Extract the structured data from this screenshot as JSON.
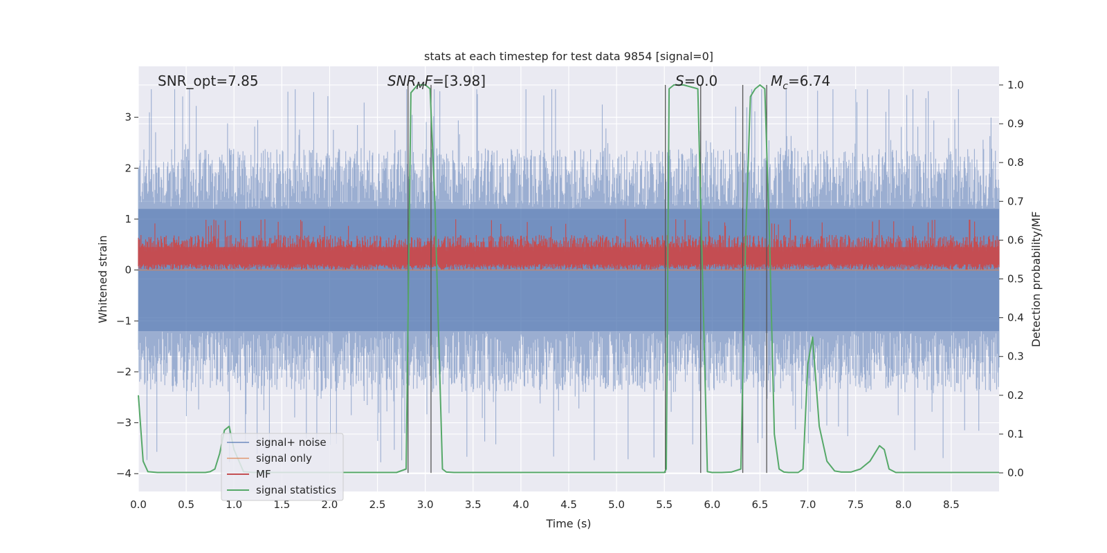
{
  "chart_data": {
    "type": "line",
    "title": "stats at each timestep for test data 9854 [signal=0]",
    "xlabel": "Time (s)",
    "ylabel_left": "Whitened strain",
    "ylabel_right": "Detection probability/MF",
    "xlim": [
      0.0,
      9.0
    ],
    "ylim_left": [
      -4.35,
      4.0
    ],
    "ylim_right": [
      -0.048,
      1.048
    ],
    "x_ticks": [
      "0.0",
      "0.5",
      "1.0",
      "1.5",
      "2.0",
      "2.5",
      "3.0",
      "3.5",
      "4.0",
      "4.5",
      "5.0",
      "5.5",
      "6.0",
      "6.5",
      "7.0",
      "7.5",
      "8.0",
      "8.5"
    ],
    "y_left_ticks": [
      "3",
      "2",
      "1",
      "0",
      "−1",
      "−2",
      "−3",
      "−4"
    ],
    "y_right_ticks": [
      "1.0",
      "0.9",
      "0.8",
      "0.7",
      "0.6",
      "0.5",
      "0.4",
      "0.3",
      "0.2",
      "0.1",
      "0.0"
    ],
    "grid": true,
    "annotations": {
      "snr_opt": "SNR_opt=7.85",
      "snr_mf": "=[3.98]",
      "s": "=0.0",
      "mc": "=6.74"
    },
    "legend": {
      "placement": "lower-left",
      "entries": [
        "signal+ noise",
        "signal only",
        "MF",
        "signal statistics"
      ]
    },
    "series": [
      {
        "name": "signal+ noise",
        "axis": "left",
        "color": "#4c72b0",
        "envelope": {
          "upper_typical": 2.0,
          "lower_typical": -2.0,
          "max": 3.55,
          "min": -3.8
        }
      },
      {
        "name": "signal only",
        "axis": "left",
        "color": "#dd8452",
        "constant": 0.0
      },
      {
        "name": "MF",
        "axis": "left",
        "color": "#c44e52",
        "envelope": {
          "low": 0.0,
          "high_typical": 0.6,
          "max": 1.0
        }
      },
      {
        "name": "signal statistics",
        "axis": "right",
        "color": "#55a868",
        "x": [
          0.0,
          0.05,
          0.1,
          0.2,
          0.3,
          0.4,
          0.5,
          0.6,
          0.7,
          0.75,
          0.8,
          0.85,
          0.9,
          0.95,
          1.0,
          1.1,
          1.2,
          1.5,
          2.0,
          2.5,
          2.7,
          2.8,
          2.85,
          2.92,
          3.0,
          3.05,
          3.1,
          3.18,
          3.22,
          3.3,
          3.5,
          4.0,
          4.5,
          5.0,
          5.5,
          5.52,
          5.55,
          5.6,
          5.7,
          5.85,
          5.9,
          5.95,
          6.0,
          6.1,
          6.2,
          6.3,
          6.35,
          6.4,
          6.45,
          6.5,
          6.55,
          6.6,
          6.65,
          6.7,
          6.75,
          6.8,
          6.9,
          6.95,
          7.0,
          7.05,
          7.12,
          7.2,
          7.28,
          7.35,
          7.45,
          7.55,
          7.65,
          7.75,
          7.8,
          7.85,
          7.92,
          8.0,
          8.2,
          8.5,
          9.0
        ],
        "y": [
          0.2,
          0.03,
          0.003,
          0.001,
          0.001,
          0.001,
          0.001,
          0.001,
          0.001,
          0.003,
          0.01,
          0.05,
          0.11,
          0.12,
          0.06,
          0.003,
          0.001,
          0.001,
          0.001,
          0.001,
          0.001,
          0.01,
          0.98,
          1.0,
          1.0,
          0.99,
          0.7,
          0.01,
          0.002,
          0.001,
          0.001,
          0.001,
          0.001,
          0.001,
          0.001,
          0.01,
          0.99,
          1.0,
          1.0,
          0.99,
          0.5,
          0.003,
          0.001,
          0.001,
          0.002,
          0.01,
          0.6,
          0.97,
          0.99,
          1.0,
          0.99,
          0.6,
          0.1,
          0.01,
          0.002,
          0.001,
          0.001,
          0.01,
          0.28,
          0.35,
          0.12,
          0.03,
          0.005,
          0.002,
          0.002,
          0.01,
          0.03,
          0.07,
          0.06,
          0.01,
          0.001,
          0.001,
          0.001,
          0.001,
          0.001
        ]
      }
    ],
    "vertical_lines": [
      2.82,
      3.06,
      5.51,
      5.88,
      6.32,
      6.57
    ]
  }
}
